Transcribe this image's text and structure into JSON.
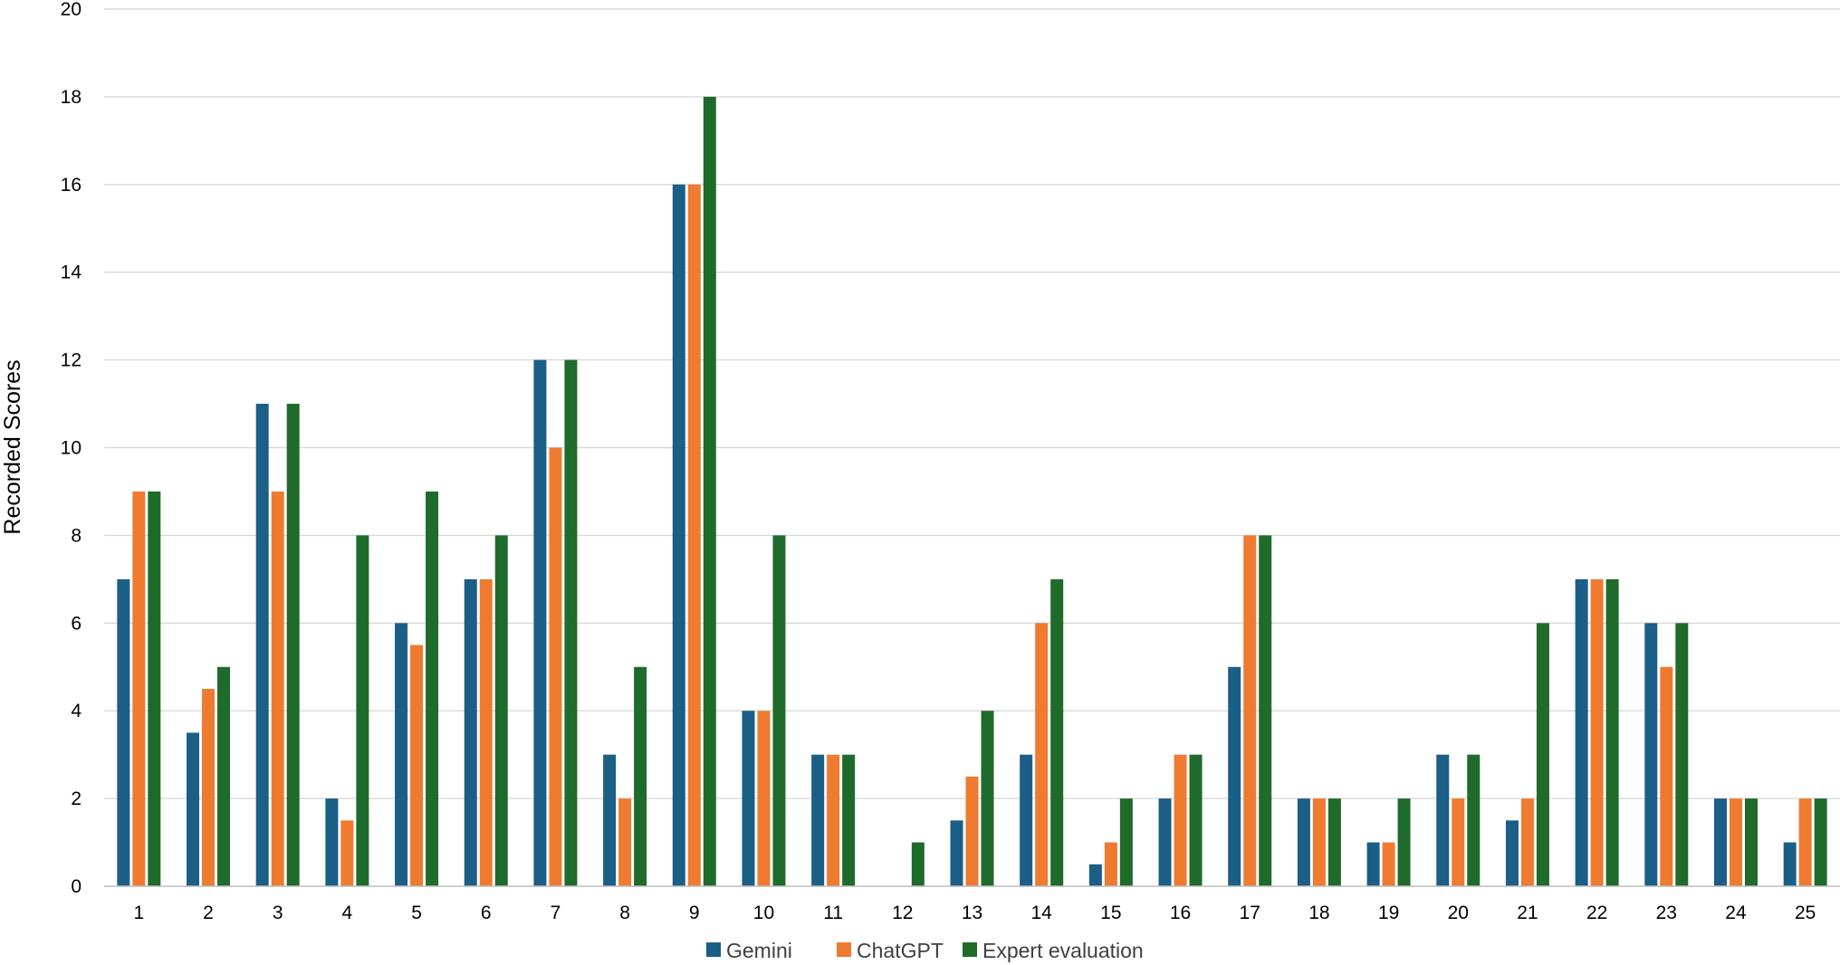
{
  "chart_data": {
    "type": "bar",
    "title": "",
    "xlabel": "",
    "ylabel": "Recorded Scores",
    "ylim": [
      0,
      20
    ],
    "y_ticks": [
      0,
      2,
      4,
      6,
      8,
      10,
      12,
      14,
      16,
      18,
      20
    ],
    "grid": true,
    "legend_position": "bottom",
    "categories": [
      "1",
      "2",
      "3",
      "4",
      "5",
      "6",
      "7",
      "8",
      "9",
      "10",
      "11",
      "12",
      "13",
      "14",
      "15",
      "16",
      "17",
      "18",
      "19",
      "20",
      "21",
      "22",
      "23",
      "24",
      "25"
    ],
    "series": [
      {
        "name": "Gemini",
        "color": "#1b5e86",
        "values": [
          7,
          3.5,
          11,
          2,
          6,
          7,
          12,
          3,
          16,
          4,
          3,
          0,
          1.5,
          3,
          0.5,
          2,
          5,
          2,
          1,
          3,
          1.5,
          7,
          6,
          2,
          1
        ]
      },
      {
        "name": "ChatGPT",
        "color": "#ee7b30",
        "values": [
          9,
          4.5,
          9,
          1.5,
          5.5,
          7,
          10,
          2,
          16,
          4,
          3,
          0,
          2.5,
          6,
          1,
          3,
          8,
          2,
          1,
          2,
          2,
          7,
          5,
          2,
          2
        ]
      },
      {
        "name": "Expert evaluation",
        "color": "#1f6b2b",
        "values": [
          9,
          5,
          11,
          8,
          9,
          8,
          12,
          5,
          18,
          8,
          3,
          1,
          4,
          7,
          2,
          3,
          8,
          2,
          2,
          3,
          6,
          7,
          6,
          2,
          2
        ]
      }
    ]
  }
}
